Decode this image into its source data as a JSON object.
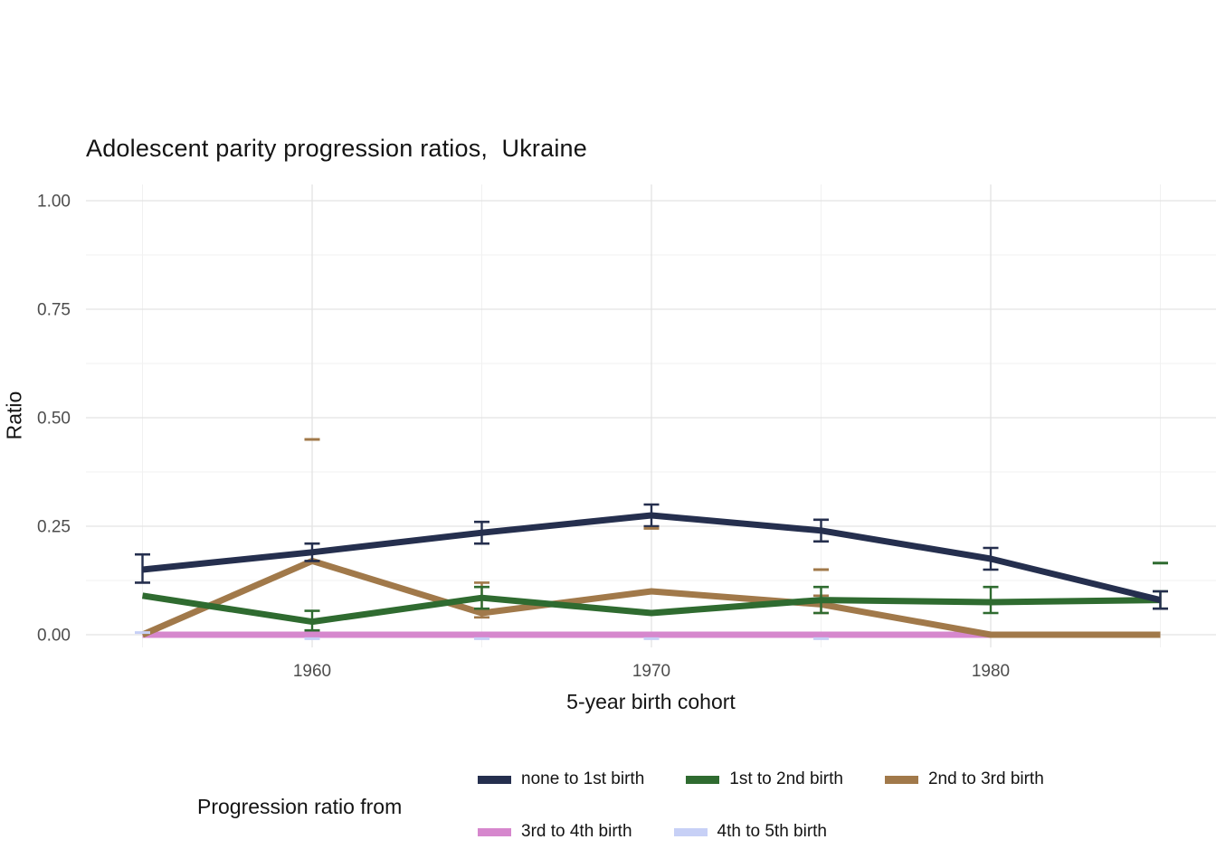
{
  "chart_data": {
    "type": "line",
    "title": "Adolescent parity progression ratios,  Ukraine",
    "xlabel": "5-year birth cohort",
    "ylabel": "Ratio",
    "legend_title": "Progression ratio from",
    "legend_position": "bottom",
    "grid": "major+minor",
    "ylim": [
      0,
      1
    ],
    "x": [
      1955,
      1960,
      1965,
      1970,
      1975,
      1980,
      1985
    ],
    "x_major_ticks": [
      1960,
      1970,
      1980
    ],
    "x_minor_ticks": [
      1955,
      1965,
      1975,
      1985
    ],
    "y_ticks": [
      {
        "v": 1.0,
        "label": "1.00"
      },
      {
        "v": 0.75,
        "label": "0.75"
      },
      {
        "v": 0.5,
        "label": "0.50"
      },
      {
        "v": 0.25,
        "label": "0.25"
      },
      {
        "v": 0.0,
        "label": "0.00"
      }
    ],
    "y_minor_ticks": [
      0.125,
      0.375,
      0.625,
      0.875
    ],
    "series": [
      {
        "name": "none to 1st birth",
        "color": "#252f4e",
        "values": [
          0.15,
          0.19,
          0.235,
          0.275,
          0.24,
          0.175,
          0.08
        ],
        "err_lo": [
          0.12,
          0.17,
          0.21,
          0.25,
          0.215,
          0.15,
          0.06
        ],
        "err_hi": [
          0.185,
          0.21,
          0.26,
          0.3,
          0.265,
          0.2,
          0.1
        ]
      },
      {
        "name": "1st to 2nd birth",
        "color": "#2f6b30",
        "values": [
          0.09,
          0.03,
          0.085,
          0.05,
          0.08,
          0.075,
          0.08
        ],
        "err_lo": [
          null,
          0.01,
          0.06,
          null,
          0.05,
          0.05,
          0.06
        ],
        "err_hi": [
          null,
          0.055,
          0.11,
          null,
          0.11,
          0.11,
          0.1
        ]
      },
      {
        "name": "2nd to 3rd birth",
        "color": "#a1794a",
        "values": [
          0.0,
          0.17,
          0.05,
          0.1,
          0.07,
          0.0,
          0.0
        ],
        "err_lo": [
          null,
          null,
          0.04,
          null,
          0.05,
          null,
          null
        ],
        "err_hi": [
          null,
          null,
          0.12,
          null,
          0.09,
          null,
          null
        ]
      },
      {
        "name": "3rd to 4th birth",
        "color": "#d687cd",
        "values": [
          0.0,
          0.0,
          0.0,
          0.0,
          0.0,
          0.0,
          0.0
        ],
        "err_lo": [
          null,
          null,
          null,
          null,
          null,
          null,
          null
        ],
        "err_hi": [
          null,
          null,
          null,
          null,
          null,
          null,
          null
        ]
      },
      {
        "name": "4th to 5th birth",
        "color": "#c7d0f6",
        "values": [
          0.0,
          0.0,
          0.0,
          0.0,
          0.0,
          0.0,
          0.0
        ],
        "err_lo": [
          null,
          null,
          null,
          null,
          null,
          null,
          null
        ],
        "err_hi": [
          null,
          null,
          null,
          null,
          null,
          null,
          null
        ]
      }
    ],
    "extra_caps": [
      {
        "series": "4th to 5th birth",
        "x": 1955,
        "y": 0.005
      },
      {
        "series": "4th to 5th birth",
        "x": 1960,
        "y": -0.009
      },
      {
        "series": "4th to 5th birth",
        "x": 1965,
        "y": -0.009
      },
      {
        "series": "4th to 5th birth",
        "x": 1970,
        "y": -0.009
      },
      {
        "series": "4th to 5th birth",
        "x": 1975,
        "y": -0.009
      },
      {
        "series": "2nd to 3rd birth",
        "x": 1960,
        "y": 0.45
      },
      {
        "series": "2nd to 3rd birth",
        "x": 1970,
        "y": 0.245
      },
      {
        "series": "2nd to 3rd birth",
        "x": 1975,
        "y": 0.15
      },
      {
        "series": "1st to 2nd birth",
        "x": 1985,
        "y": 0.165
      }
    ],
    "colors": {
      "grid_major": "#e3e3e3",
      "grid_minor": "#f1f1f1",
      "tick_label": "#4d4d4d",
      "text": "#141414",
      "background": "#ffffff"
    }
  }
}
